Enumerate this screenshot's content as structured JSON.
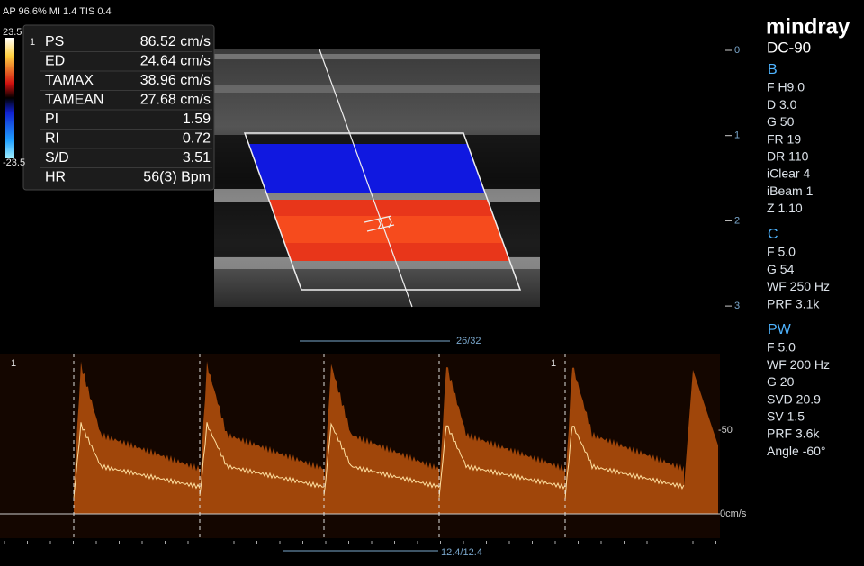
{
  "header": {
    "acoustic": "AP 96.6%  MI 1.4  TIS 0.4"
  },
  "color_scale": {
    "max": "23.5",
    "min": "-23.5",
    "marker": "1"
  },
  "measurements": [
    {
      "label": "PS",
      "value": "86.52 cm/s"
    },
    {
      "label": "ED",
      "value": "24.64 cm/s"
    },
    {
      "label": "TAMAX",
      "value": "38.96 cm/s"
    },
    {
      "label": "TAMEAN",
      "value": "27.68 cm/s"
    },
    {
      "label": "PI",
      "value": "1.59"
    },
    {
      "label": "RI",
      "value": "0.72"
    },
    {
      "label": "S/D",
      "value": "3.51"
    },
    {
      "label": "HR",
      "value": "56(3) Bpm"
    }
  ],
  "brand": {
    "logo": "mindray",
    "model": "DC-90"
  },
  "depth_scale": [
    "0",
    "1",
    "2",
    "3"
  ],
  "params": [
    {
      "title": "B",
      "items": [
        "F H9.0",
        "D 3.0",
        "G 50",
        "FR 19",
        "DR 110",
        "iClear 4",
        "iBeam 1",
        "Z 1.10"
      ]
    },
    {
      "title": "C",
      "items": [
        "F 5.0",
        "G 54",
        "WF 250 Hz",
        "PRF 3.1k"
      ]
    },
    {
      "title": "PW",
      "items": [
        "F 5.0",
        "WF 200 Hz",
        "G 20",
        "SVD 20.9",
        "SV 1.5",
        "PRF 3.6k",
        "Angle  -60°"
      ]
    }
  ],
  "scan_info": {
    "frame": "26/32",
    "sweep": "12.4/12.4"
  },
  "spectrum": {
    "scale": [
      "-50",
      "0cm/s"
    ],
    "markers": [
      "1",
      "1"
    ]
  }
}
